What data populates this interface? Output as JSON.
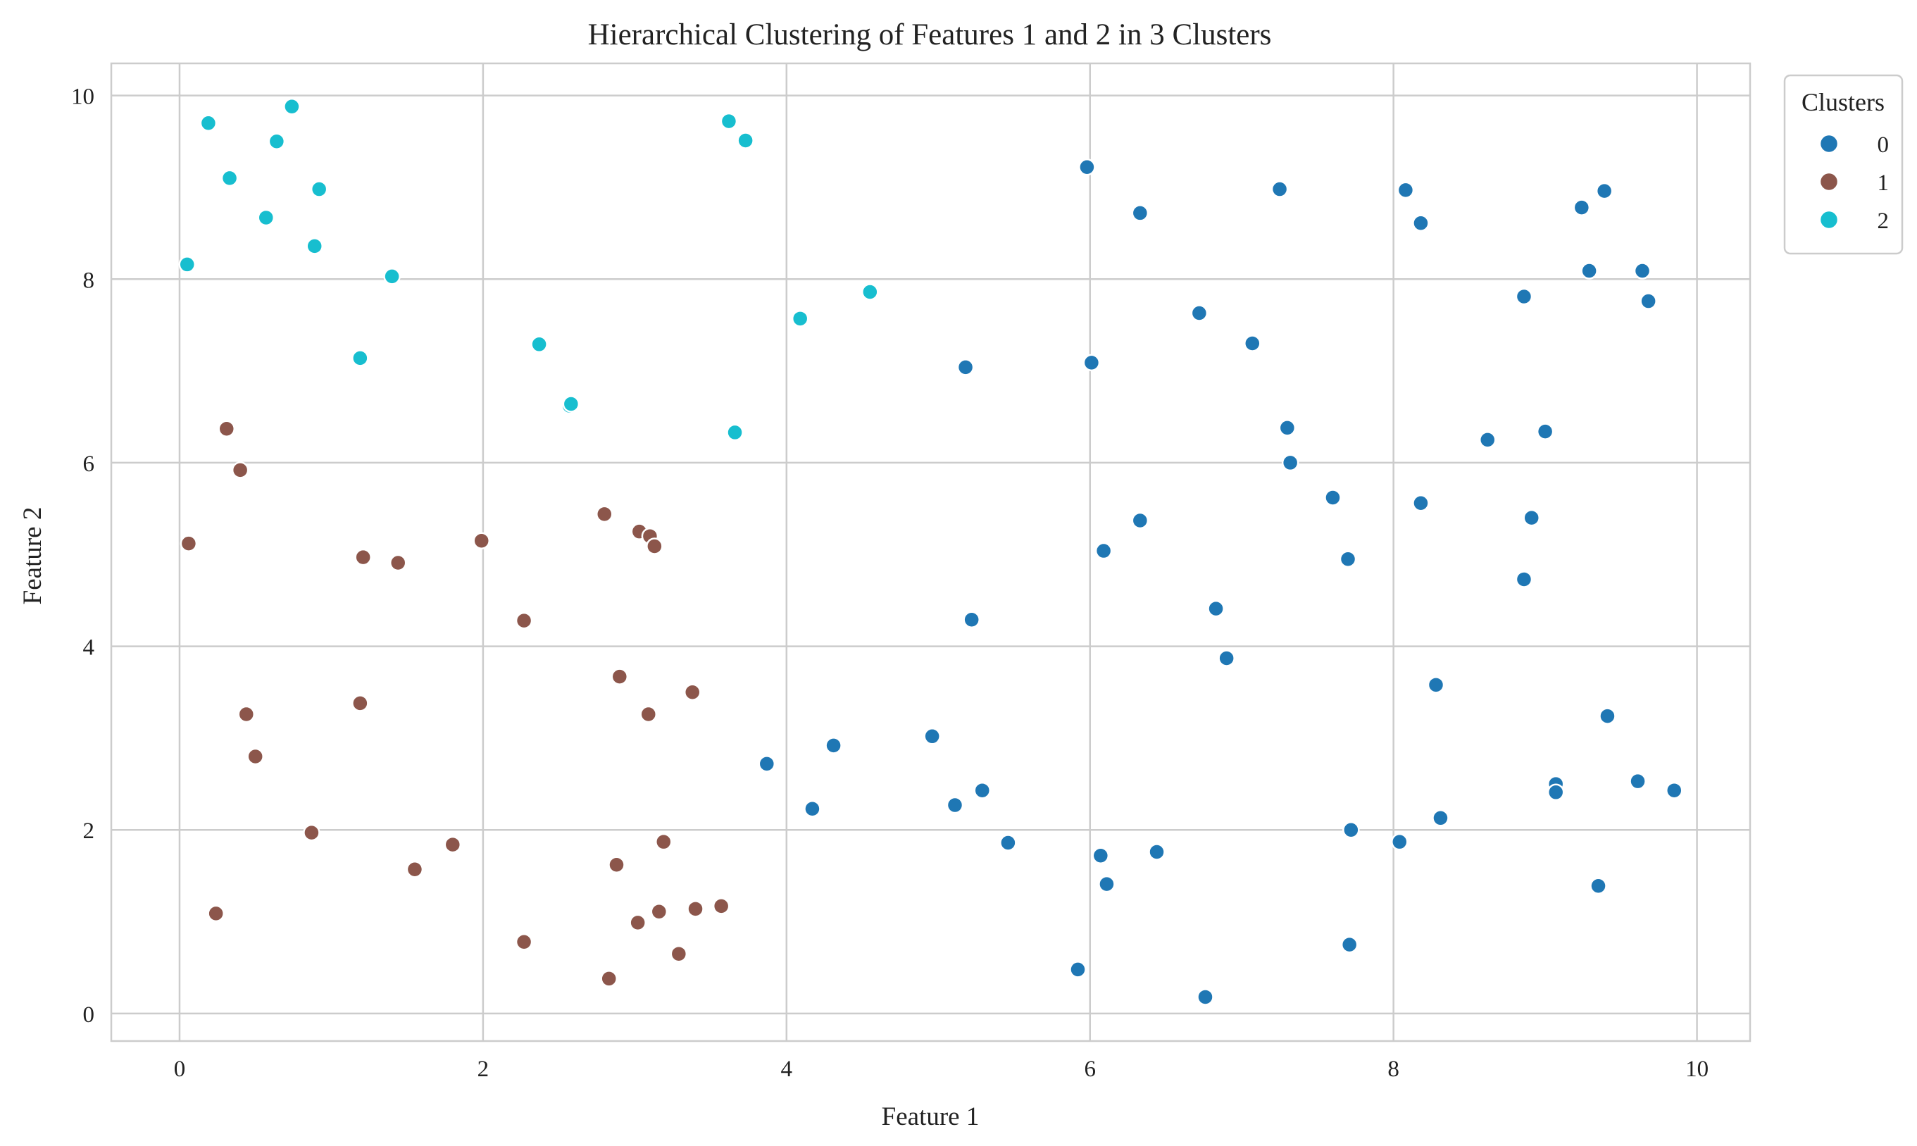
{
  "chart_data": {
    "type": "scatter",
    "title": "Hierarchical Clustering of Features 1 and 2 in 3 Clusters",
    "xlabel": "Feature 1",
    "ylabel": "Feature 2",
    "xlim": [
      -0.45,
      10.35
    ],
    "ylim": [
      -0.3,
      10.35
    ],
    "xticks": [
      0,
      2,
      4,
      6,
      8,
      10
    ],
    "yticks": [
      0,
      2,
      4,
      6,
      8,
      10
    ],
    "grid": true,
    "legend": {
      "title": "Clusters",
      "placement": "upper-right-outside"
    },
    "series": [
      {
        "name": "0",
        "color": "#1f77b4",
        "points": [
          [
            5.98,
            9.22
          ],
          [
            6.33,
            8.72
          ],
          [
            7.25,
            8.98
          ],
          [
            8.08,
            8.97
          ],
          [
            8.18,
            8.61
          ],
          [
            9.39,
            8.96
          ],
          [
            9.24,
            8.78
          ],
          [
            9.29,
            8.09
          ],
          [
            9.64,
            8.09
          ],
          [
            9.68,
            7.76
          ],
          [
            8.86,
            7.81
          ],
          [
            6.72,
            7.63
          ],
          [
            7.07,
            7.3
          ],
          [
            6.01,
            7.09
          ],
          [
            5.18,
            7.04
          ],
          [
            7.3,
            6.38
          ],
          [
            7.32,
            6.0
          ],
          [
            8.62,
            6.25
          ],
          [
            9.0,
            6.34
          ],
          [
            7.6,
            5.62
          ],
          [
            8.18,
            5.56
          ],
          [
            8.91,
            5.4
          ],
          [
            6.33,
            5.37
          ],
          [
            6.09,
            5.04
          ],
          [
            7.7,
            4.95
          ],
          [
            8.86,
            4.73
          ],
          [
            6.83,
            4.41
          ],
          [
            5.22,
            4.29
          ],
          [
            6.9,
            3.87
          ],
          [
            8.28,
            3.58
          ],
          [
            9.41,
            3.24
          ],
          [
            3.87,
            2.72
          ],
          [
            4.31,
            2.92
          ],
          [
            4.96,
            3.02
          ],
          [
            4.17,
            2.23
          ],
          [
            5.11,
            2.27
          ],
          [
            5.29,
            2.43
          ],
          [
            9.07,
            2.5
          ],
          [
            9.07,
            2.41
          ],
          [
            9.61,
            2.53
          ],
          [
            9.85,
            2.43
          ],
          [
            8.31,
            2.13
          ],
          [
            7.72,
            2.0
          ],
          [
            8.04,
            1.87
          ],
          [
            5.46,
            1.86
          ],
          [
            6.07,
            1.72
          ],
          [
            6.44,
            1.76
          ],
          [
            6.11,
            1.41
          ],
          [
            9.35,
            1.39
          ],
          [
            7.71,
            0.75
          ],
          [
            5.92,
            0.48
          ],
          [
            6.76,
            0.18
          ]
        ]
      },
      {
        "name": "1",
        "color": "#8c564b",
        "points": [
          [
            0.31,
            6.37
          ],
          [
            0.4,
            5.92
          ],
          [
            0.06,
            5.12
          ],
          [
            1.21,
            4.97
          ],
          [
            1.44,
            4.91
          ],
          [
            1.99,
            5.15
          ],
          [
            2.8,
            5.44
          ],
          [
            3.03,
            5.25
          ],
          [
            3.1,
            5.2
          ],
          [
            3.13,
            5.09
          ],
          [
            2.27,
            4.28
          ],
          [
            2.9,
            3.67
          ],
          [
            3.38,
            3.5
          ],
          [
            3.09,
            3.26
          ],
          [
            0.44,
            3.26
          ],
          [
            1.19,
            3.38
          ],
          [
            0.5,
            2.8
          ],
          [
            0.87,
            1.97
          ],
          [
            1.8,
            1.84
          ],
          [
            3.19,
            1.87
          ],
          [
            1.55,
            1.57
          ],
          [
            2.88,
            1.62
          ],
          [
            0.24,
            1.09
          ],
          [
            3.02,
            0.99
          ],
          [
            3.16,
            1.11
          ],
          [
            3.4,
            1.14
          ],
          [
            3.57,
            1.17
          ],
          [
            2.27,
            0.78
          ],
          [
            3.29,
            0.65
          ],
          [
            2.83,
            0.38
          ]
        ]
      },
      {
        "name": "2",
        "color": "#17becf",
        "points": [
          [
            0.74,
            9.88
          ],
          [
            0.19,
            9.7
          ],
          [
            0.64,
            9.5
          ],
          [
            0.33,
            9.1
          ],
          [
            0.92,
            8.98
          ],
          [
            0.57,
            8.67
          ],
          [
            0.89,
            8.36
          ],
          [
            0.05,
            8.16
          ],
          [
            1.4,
            8.03
          ],
          [
            1.19,
            7.14
          ],
          [
            3.62,
            9.72
          ],
          [
            3.73,
            9.51
          ],
          [
            4.55,
            7.86
          ],
          [
            4.09,
            7.57
          ],
          [
            2.37,
            7.29
          ],
          [
            2.57,
            6.62
          ],
          [
            2.58,
            6.64
          ],
          [
            3.66,
            6.33
          ]
        ]
      }
    ]
  }
}
